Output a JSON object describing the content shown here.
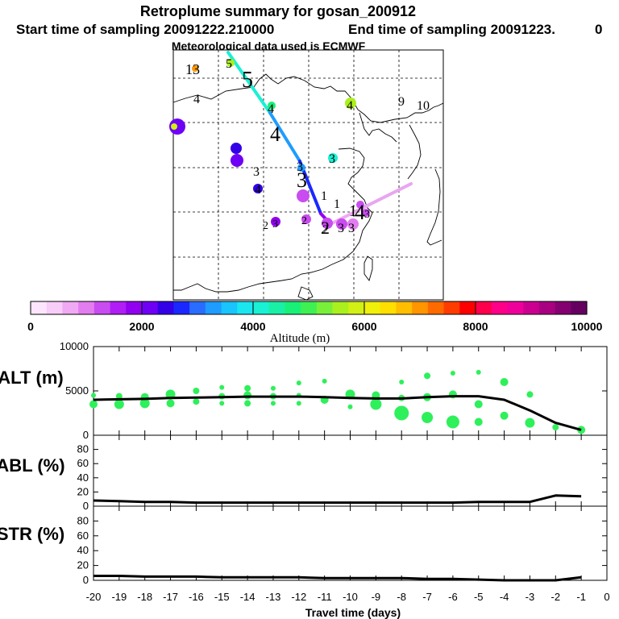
{
  "header": {
    "title": "Retroplume summary for gosan_200912",
    "start_text": "Start time of sampling 20091222.210000",
    "end_text": "End time of sampling 20091223.",
    "end_zero": "0",
    "met_text": "Meteorological data used is ECMWF"
  },
  "colorbar": {
    "label": "Altitude (m)",
    "min": 0,
    "max": 10000,
    "tick_labels": [
      "0",
      "2000",
      "4000",
      "6000",
      "8000",
      "10000"
    ],
    "colors": [
      "#fde6fd",
      "#f8cdf8",
      "#f0a9f3",
      "#e27df0",
      "#c94cf0",
      "#b01ef5",
      "#9100f0",
      "#6e00f5",
      "#3300e8",
      "#1a28ff",
      "#2a6cff",
      "#1e9cff",
      "#19c4ff",
      "#1ae6f0",
      "#19f0d4",
      "#19f0a6",
      "#19f078",
      "#3ff052",
      "#78f03a",
      "#aaf01e",
      "#d2f014",
      "#f0f00a",
      "#ffdf00",
      "#ffbe00",
      "#ff9600",
      "#ff6a00",
      "#ff3c00",
      "#ff0000",
      "#ff004c",
      "#ff0088",
      "#f0009a",
      "#cc0090",
      "#a80080",
      "#850070",
      "#660060"
    ]
  },
  "map": {
    "track_labels": [
      {
        "text": "5",
        "big": true
      },
      {
        "text": "4",
        "big": true
      },
      {
        "text": "3",
        "big": true
      },
      {
        "text": "2",
        "big": true
      },
      {
        "text": "1",
        "big": true
      },
      {
        "text": "4",
        "big": true
      },
      {
        "text": "13",
        "big": false
      },
      {
        "text": "5",
        "big": false
      },
      {
        "text": "4",
        "big": false
      },
      {
        "text": "4",
        "big": false
      },
      {
        "text": "4",
        "big": false
      },
      {
        "text": "9",
        "big": false
      },
      {
        "text": "10",
        "big": false
      },
      {
        "text": "3",
        "big": false
      },
      {
        "text": "3",
        "big": false
      },
      {
        "text": "3",
        "big": false
      },
      {
        "text": "4",
        "big": false
      },
      {
        "text": "1",
        "big": false
      },
      {
        "text": "1",
        "big": false
      },
      {
        "text": "2",
        "big": false
      },
      {
        "text": "3",
        "big": false
      },
      {
        "text": "2",
        "big": false
      },
      {
        "text": "2",
        "big": false
      },
      {
        "text": "3",
        "big": false
      },
      {
        "text": "3",
        "big": false
      },
      {
        "text": "3",
        "big": false
      }
    ],
    "plume_points": [
      {
        "alt": 7000
      },
      {
        "alt": 5500
      },
      {
        "alt": 2200
      },
      {
        "alt": 2300
      },
      {
        "alt": 2200
      },
      {
        "alt": 2300
      },
      {
        "alt": 3400
      },
      {
        "alt": 1400
      },
      {
        "alt": 1800
      },
      {
        "alt": 4000
      },
      {
        "alt": 1200
      },
      {
        "alt": 1400
      },
      {
        "alt": 1200
      },
      {
        "alt": 1100
      },
      {
        "alt": 1300
      },
      {
        "alt": 1200
      },
      {
        "alt": 4600
      },
      {
        "alt": 5600
      },
      {
        "alt": 5800
      }
    ],
    "track_segments": [
      {
        "alt": 4000
      },
      {
        "alt": 3200
      },
      {
        "alt": 2600
      },
      {
        "alt": 1800
      },
      {
        "alt": 600
      }
    ]
  },
  "chart_data": [
    {
      "type": "line",
      "title": "ALT (m)",
      "xlabel": "Travel time (days)",
      "ylabel": "ALT (m)",
      "xlim": [
        -20,
        0
      ],
      "ylim": [
        0,
        10000
      ],
      "y_ticks": [
        "0",
        "5000",
        "10000"
      ],
      "x": [
        -20,
        -19,
        -18,
        -17,
        -16,
        -15,
        -14,
        -13,
        -12,
        -11,
        -10,
        -9,
        -8,
        -7,
        -6,
        -5,
        -4,
        -3,
        -2,
        -1
      ],
      "values": [
        4000,
        4050,
        4100,
        4200,
        4250,
        4300,
        4350,
        4350,
        4350,
        4300,
        4200,
        4150,
        4150,
        4300,
        4400,
        4400,
        4000,
        2800,
        1400,
        600
      ],
      "scatter": [
        {
          "x": -20,
          "y": 4500,
          "s": 3
        },
        {
          "x": -20,
          "y": 3500,
          "s": 5
        },
        {
          "x": -19,
          "y": 4400,
          "s": 4
        },
        {
          "x": -19,
          "y": 3500,
          "s": 6
        },
        {
          "x": -18,
          "y": 4300,
          "s": 5
        },
        {
          "x": -18,
          "y": 3600,
          "s": 6
        },
        {
          "x": -17,
          "y": 4600,
          "s": 6
        },
        {
          "x": -17,
          "y": 3600,
          "s": 5
        },
        {
          "x": -16,
          "y": 5000,
          "s": 4
        },
        {
          "x": -16,
          "y": 3800,
          "s": 4
        },
        {
          "x": -15,
          "y": 5400,
          "s": 3
        },
        {
          "x": -15,
          "y": 4400,
          "s": 4
        },
        {
          "x": -15,
          "y": 3600,
          "s": 3
        },
        {
          "x": -14,
          "y": 5300,
          "s": 4
        },
        {
          "x": -14,
          "y": 4500,
          "s": 5
        },
        {
          "x": -14,
          "y": 3600,
          "s": 4
        },
        {
          "x": -13,
          "y": 5300,
          "s": 3
        },
        {
          "x": -13,
          "y": 4400,
          "s": 4
        },
        {
          "x": -13,
          "y": 3600,
          "s": 3
        },
        {
          "x": -12,
          "y": 5900,
          "s": 3
        },
        {
          "x": -12,
          "y": 4500,
          "s": 3
        },
        {
          "x": -12,
          "y": 3600,
          "s": 3
        },
        {
          "x": -11,
          "y": 6100,
          "s": 3
        },
        {
          "x": -11,
          "y": 4000,
          "s": 5
        },
        {
          "x": -10,
          "y": 4600,
          "s": 6
        },
        {
          "x": -10,
          "y": 3200,
          "s": 3
        },
        {
          "x": -9,
          "y": 4500,
          "s": 5
        },
        {
          "x": -9,
          "y": 3500,
          "s": 7
        },
        {
          "x": -8,
          "y": 6000,
          "s": 3
        },
        {
          "x": -8,
          "y": 4200,
          "s": 4
        },
        {
          "x": -8,
          "y": 2500,
          "s": 9
        },
        {
          "x": -7,
          "y": 6700,
          "s": 4
        },
        {
          "x": -7,
          "y": 4300,
          "s": 5
        },
        {
          "x": -7,
          "y": 2000,
          "s": 7
        },
        {
          "x": -6,
          "y": 7000,
          "s": 3
        },
        {
          "x": -6,
          "y": 4600,
          "s": 5
        },
        {
          "x": -6,
          "y": 1500,
          "s": 8
        },
        {
          "x": -5,
          "y": 7100,
          "s": 3
        },
        {
          "x": -5,
          "y": 3500,
          "s": 5
        },
        {
          "x": -5,
          "y": 1500,
          "s": 5
        },
        {
          "x": -4,
          "y": 6000,
          "s": 5
        },
        {
          "x": -4,
          "y": 2200,
          "s": 5
        },
        {
          "x": -3,
          "y": 4600,
          "s": 4
        },
        {
          "x": -3,
          "y": 1400,
          "s": 6
        },
        {
          "x": -2,
          "y": 900,
          "s": 4
        },
        {
          "x": -1,
          "y": 600,
          "s": 5
        }
      ]
    },
    {
      "type": "line",
      "title": "ABL (%)",
      "ylabel": "ABL (%)",
      "xlim": [
        -20,
        0
      ],
      "ylim": [
        0,
        100
      ],
      "y_ticks": [
        "0",
        "20",
        "40",
        "60",
        "80"
      ],
      "x": [
        -20,
        -19,
        -18,
        -17,
        -16,
        -15,
        -14,
        -13,
        -12,
        -11,
        -10,
        -9,
        -8,
        -7,
        -6,
        -5,
        -4,
        -3,
        -2,
        -1
      ],
      "values": [
        8,
        7,
        6,
        6,
        5,
        5,
        5,
        5,
        5,
        5,
        5,
        5,
        5,
        5,
        5,
        6,
        6,
        6,
        15,
        14
      ]
    },
    {
      "type": "line",
      "title": "STR (%)",
      "ylabel": "STR (%)",
      "xlabel": "Travel time (days)",
      "xlim": [
        -20,
        0
      ],
      "ylim": [
        0,
        100
      ],
      "y_ticks": [
        "0",
        "20",
        "40",
        "60",
        "80"
      ],
      "x_ticks": [
        "-20",
        "-19",
        "-18",
        "-17",
        "-16",
        "-15",
        "-14",
        "-13",
        "-12",
        "-11",
        "-10",
        "-9",
        "-8",
        "-7",
        "-6",
        "-5",
        "-4",
        "-3",
        "-2",
        "-1",
        "0"
      ],
      "x": [
        -20,
        -19,
        -18,
        -17,
        -16,
        -15,
        -14,
        -13,
        -12,
        -11,
        -10,
        -9,
        -8,
        -7,
        -6,
        -5,
        -4,
        -3,
        -2,
        -1
      ],
      "values": [
        6,
        6,
        5,
        5,
        5,
        4,
        4,
        4,
        4,
        3,
        3,
        3,
        3,
        2,
        2,
        1,
        0,
        0,
        0,
        4
      ]
    }
  ]
}
